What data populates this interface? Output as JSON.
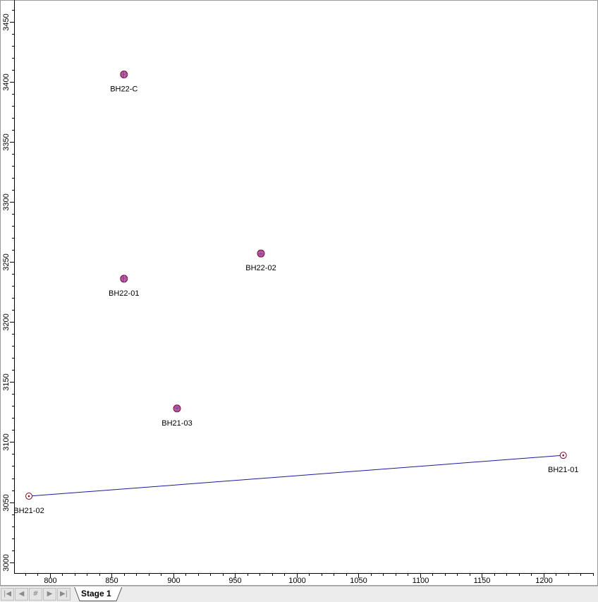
{
  "tabs": {
    "active_tab_label": "Stage 1",
    "nav_icons": [
      "first-icon",
      "prev-icon",
      "hash-icon",
      "next-icon",
      "last-icon"
    ],
    "hash_glyph": "#"
  },
  "colors": {
    "line": "#1a1a9e",
    "marker_fill": "#b84eb0",
    "marker_outline": "#7a0f2a",
    "hollow_marker": "#7a0f2a"
  },
  "chart_data": {
    "type": "scatter",
    "title": "",
    "xlabel": "",
    "ylabel": "",
    "xlim": [
      771,
      1243
    ],
    "ylim": [
      2991,
      3468
    ],
    "x_ticks": [
      800,
      850,
      900,
      950,
      1000,
      1050,
      1100,
      1150,
      1200
    ],
    "y_ticks": [
      3000,
      3050,
      3100,
      3150,
      3200,
      3250,
      3300,
      3350,
      3400,
      3450
    ],
    "grid": false,
    "points": [
      {
        "name": "BH22-C",
        "x": 860,
        "y": 3406,
        "marker": "filled-quartered"
      },
      {
        "name": "BH22-02",
        "x": 971,
        "y": 3257,
        "marker": "filled-quartered"
      },
      {
        "name": "BH22-01",
        "x": 860,
        "y": 3236,
        "marker": "filled-quartered"
      },
      {
        "name": "BH21-03",
        "x": 903,
        "y": 3128,
        "marker": "filled-quartered"
      },
      {
        "name": "BH21-01",
        "x": 1216,
        "y": 3089,
        "marker": "hollow-dot"
      },
      {
        "name": "BH21-02",
        "x": 783,
        "y": 3055,
        "marker": "hollow-dot"
      }
    ],
    "segments": [
      {
        "from": "BH21-02",
        "to": "BH21-01"
      }
    ]
  }
}
